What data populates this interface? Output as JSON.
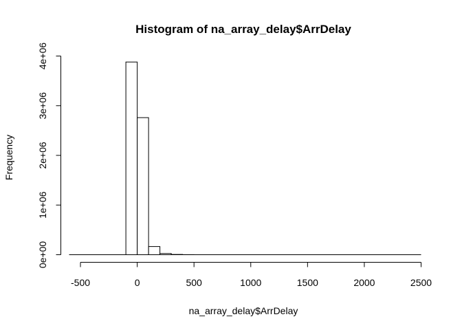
{
  "chart_data": {
    "type": "bar",
    "title": "Histogram of na_array_delay$ArrDelay",
    "xlabel": "na_array_delay$ArrDelay",
    "ylabel": "Frequency",
    "xlim": [
      -600,
      2500
    ],
    "ylim": [
      0,
      4000000
    ],
    "bin_width": 100,
    "bins": [
      {
        "start": -600,
        "end": -500,
        "value": 0
      },
      {
        "start": -500,
        "end": -400,
        "value": 0
      },
      {
        "start": -400,
        "end": -300,
        "value": 0
      },
      {
        "start": -300,
        "end": -200,
        "value": 0
      },
      {
        "start": -200,
        "end": -100,
        "value": 0
      },
      {
        "start": -100,
        "end": 0,
        "value": 3880000
      },
      {
        "start": 0,
        "end": 100,
        "value": 2760000
      },
      {
        "start": 100,
        "end": 200,
        "value": 165000
      },
      {
        "start": 200,
        "end": 300,
        "value": 25000
      },
      {
        "start": 300,
        "end": 400,
        "value": 5000
      },
      {
        "start": 400,
        "end": 500,
        "value": 1500
      },
      {
        "start": 500,
        "end": 2500,
        "value": 0
      }
    ],
    "x_ticks": [
      {
        "value": -500,
        "label": "-500"
      },
      {
        "value": 0,
        "label": "0"
      },
      {
        "value": 500,
        "label": "500"
      },
      {
        "value": 1000,
        "label": "1000"
      },
      {
        "value": 1500,
        "label": "1500"
      },
      {
        "value": 2000,
        "label": "2000"
      },
      {
        "value": 2500,
        "label": "2500"
      }
    ],
    "y_ticks": [
      {
        "value": 0,
        "label": "0e+00"
      },
      {
        "value": 1000000,
        "label": "1e+06"
      },
      {
        "value": 2000000,
        "label": "2e+06"
      },
      {
        "value": 3000000,
        "label": "3e+06"
      },
      {
        "value": 4000000,
        "label": "4e+06"
      }
    ],
    "grid": false,
    "legend": "none"
  }
}
